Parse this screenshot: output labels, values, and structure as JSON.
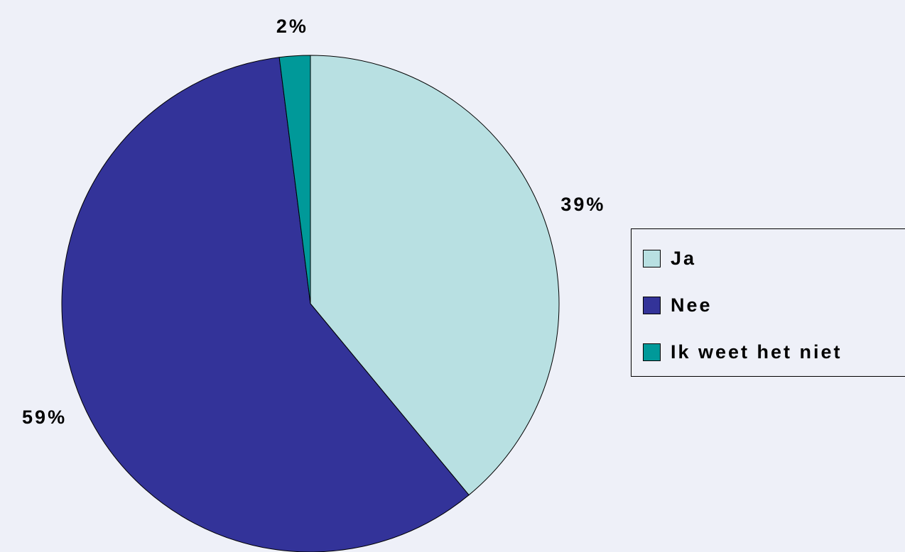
{
  "chart_data": {
    "type": "pie",
    "categories": [
      "Ja",
      "Nee",
      "Ik weet het niet"
    ],
    "values": [
      39,
      59,
      2
    ],
    "value_labels": [
      "39%",
      "59%",
      "2%"
    ],
    "colors": [
      "#b8e0e2",
      "#333399",
      "#009999"
    ],
    "legend": "right"
  }
}
